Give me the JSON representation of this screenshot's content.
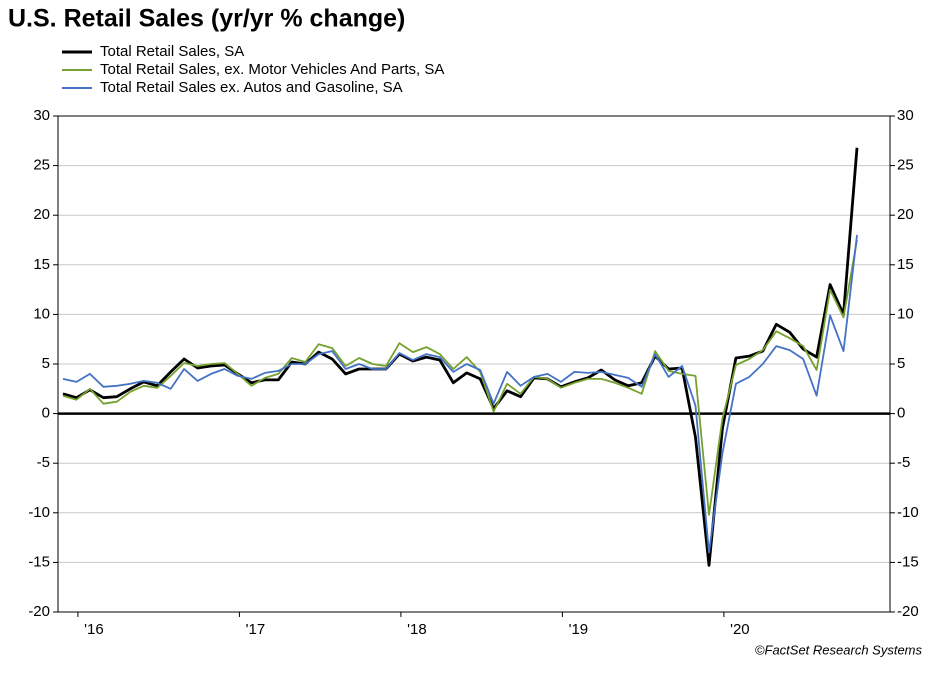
{
  "chart_data": {
    "type": "line",
    "title": "U.S. Retail Sales (yr/yr % change)",
    "source": "©FactSet Research Systems",
    "categories": [
      null,
      null,
      "'16",
      null,
      null,
      null,
      null,
      null,
      null,
      null,
      null,
      null,
      null,
      null,
      "'17",
      null,
      null,
      null,
      null,
      null,
      null,
      null,
      null,
      null,
      null,
      null,
      "'18",
      null,
      null,
      null,
      null,
      null,
      null,
      null,
      null,
      null,
      null,
      null,
      "'19",
      null,
      null,
      null,
      null,
      null,
      null,
      null,
      null,
      null,
      null,
      null,
      "'20",
      null,
      null,
      null,
      null,
      null,
      null,
      null,
      null,
      null
    ],
    "series": [
      {
        "name": "Total Retail Sales, SA",
        "color": "#000000",
        "width": 2.8,
        "values": [
          2.0,
          1.6,
          2.4,
          1.6,
          1.7,
          2.5,
          3.2,
          2.8,
          4.2,
          5.5,
          4.6,
          4.8,
          4.9,
          4.0,
          3.1,
          3.4,
          3.4,
          5.2,
          5.0,
          6.2,
          5.5,
          4.0,
          4.5,
          4.5,
          4.5,
          6.0,
          5.3,
          5.7,
          5.4,
          3.1,
          4.1,
          3.5,
          0.5,
          2.3,
          1.7,
          3.6,
          3.5,
          2.7,
          3.2,
          3.6,
          4.4,
          3.4,
          2.8,
          3.1,
          5.8,
          4.5,
          4.6,
          -2.4,
          -15.3,
          -1.5,
          5.6,
          5.8,
          6.3,
          9.0,
          8.2,
          6.5,
          5.7,
          13.0,
          10.0,
          26.8
        ]
      },
      {
        "name": "Total Retail Sales, ex. Motor Vehicles And Parts, SA",
        "color": "#76a12e",
        "width": 1.8,
        "values": [
          1.8,
          1.4,
          2.5,
          1.0,
          1.2,
          2.2,
          2.8,
          2.6,
          3.8,
          5.1,
          4.8,
          5.0,
          5.1,
          4.0,
          2.8,
          3.6,
          4.0,
          5.6,
          5.2,
          7.0,
          6.6,
          4.8,
          5.6,
          5.0,
          4.8,
          7.1,
          6.2,
          6.7,
          6.0,
          4.5,
          5.7,
          4.2,
          0.2,
          3.0,
          2.0,
          3.7,
          3.5,
          2.6,
          3.1,
          3.5,
          3.5,
          3.1,
          2.6,
          2.0,
          6.3,
          4.3,
          4.0,
          3.8,
          -10.2,
          -0.5,
          4.9,
          5.5,
          6.4,
          8.3,
          7.6,
          6.8,
          4.4,
          12.5,
          9.7,
          17.5
        ]
      },
      {
        "name": "Total Retail Sales ex. Autos and Gasoline, SA",
        "color": "#4472c4",
        "width": 1.8,
        "values": [
          3.5,
          3.2,
          4.0,
          2.7,
          2.8,
          3.0,
          3.3,
          3.1,
          2.5,
          4.5,
          3.3,
          4.0,
          4.5,
          3.8,
          3.5,
          4.1,
          4.3,
          5.0,
          5.0,
          6.0,
          6.3,
          4.5,
          5.0,
          4.5,
          4.5,
          6.1,
          5.4,
          6.0,
          5.7,
          4.2,
          5.0,
          4.4,
          1.0,
          4.2,
          2.8,
          3.7,
          4.0,
          3.2,
          4.2,
          4.1,
          4.2,
          3.9,
          3.6,
          2.7,
          6.0,
          3.7,
          4.8,
          0.8,
          -14.0,
          -4.0,
          3.0,
          3.7,
          5.0,
          6.8,
          6.4,
          5.5,
          1.8,
          9.9,
          6.3,
          18.0
        ]
      }
    ],
    "ylim": [
      -20,
      30
    ],
    "yticks": [
      -20,
      -15,
      -10,
      -5,
      0,
      5,
      10,
      15,
      20,
      25,
      30
    ],
    "y2lim": [
      -20,
      30
    ],
    "y2ticks": [
      -20,
      -15,
      -10,
      -5,
      0,
      5,
      10,
      15,
      20,
      25,
      30
    ],
    "grid": true,
    "zero_line": true,
    "legend": "top-left"
  }
}
